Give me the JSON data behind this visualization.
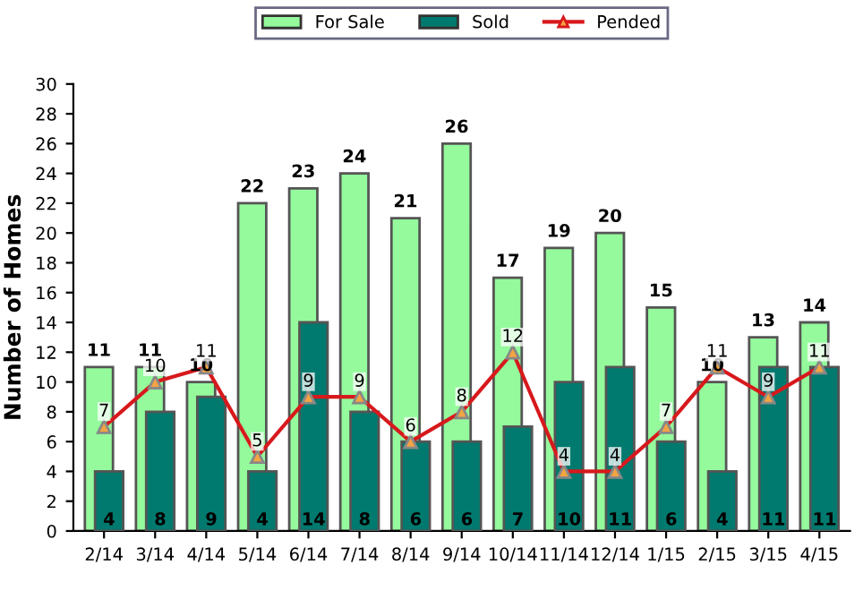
{
  "chart_data": {
    "type": "bar",
    "ylabel": "Number of Homes",
    "categories": [
      "2/14",
      "3/14",
      "4/14",
      "5/14",
      "6/14",
      "7/14",
      "8/14",
      "9/14",
      "10/14",
      "11/14",
      "12/14",
      "1/15",
      "2/15",
      "3/15",
      "4/15"
    ],
    "series": [
      {
        "name": "For Sale",
        "color": "#94fa9c",
        "values": [
          11,
          11,
          10,
          22,
          23,
          24,
          21,
          26,
          17,
          19,
          20,
          15,
          10,
          13,
          14
        ]
      },
      {
        "name": "Sold",
        "color": "#00796e",
        "values": [
          4,
          8,
          9,
          4,
          14,
          8,
          6,
          6,
          7,
          10,
          11,
          6,
          4,
          11,
          11
        ]
      },
      {
        "name": "Pended",
        "type": "line",
        "color": "#d7191c",
        "marker": "triangle",
        "values": [
          7,
          10,
          11,
          5,
          9,
          9,
          6,
          8,
          12,
          4,
          4,
          7,
          11,
          9,
          11
        ]
      }
    ],
    "ylim": [
      0,
      30
    ],
    "yticks": [
      0,
      2,
      4,
      6,
      8,
      10,
      12,
      14,
      16,
      18,
      20,
      22,
      24,
      26,
      28,
      30
    ],
    "grid": false,
    "legend": "top",
    "data_labels": true
  }
}
